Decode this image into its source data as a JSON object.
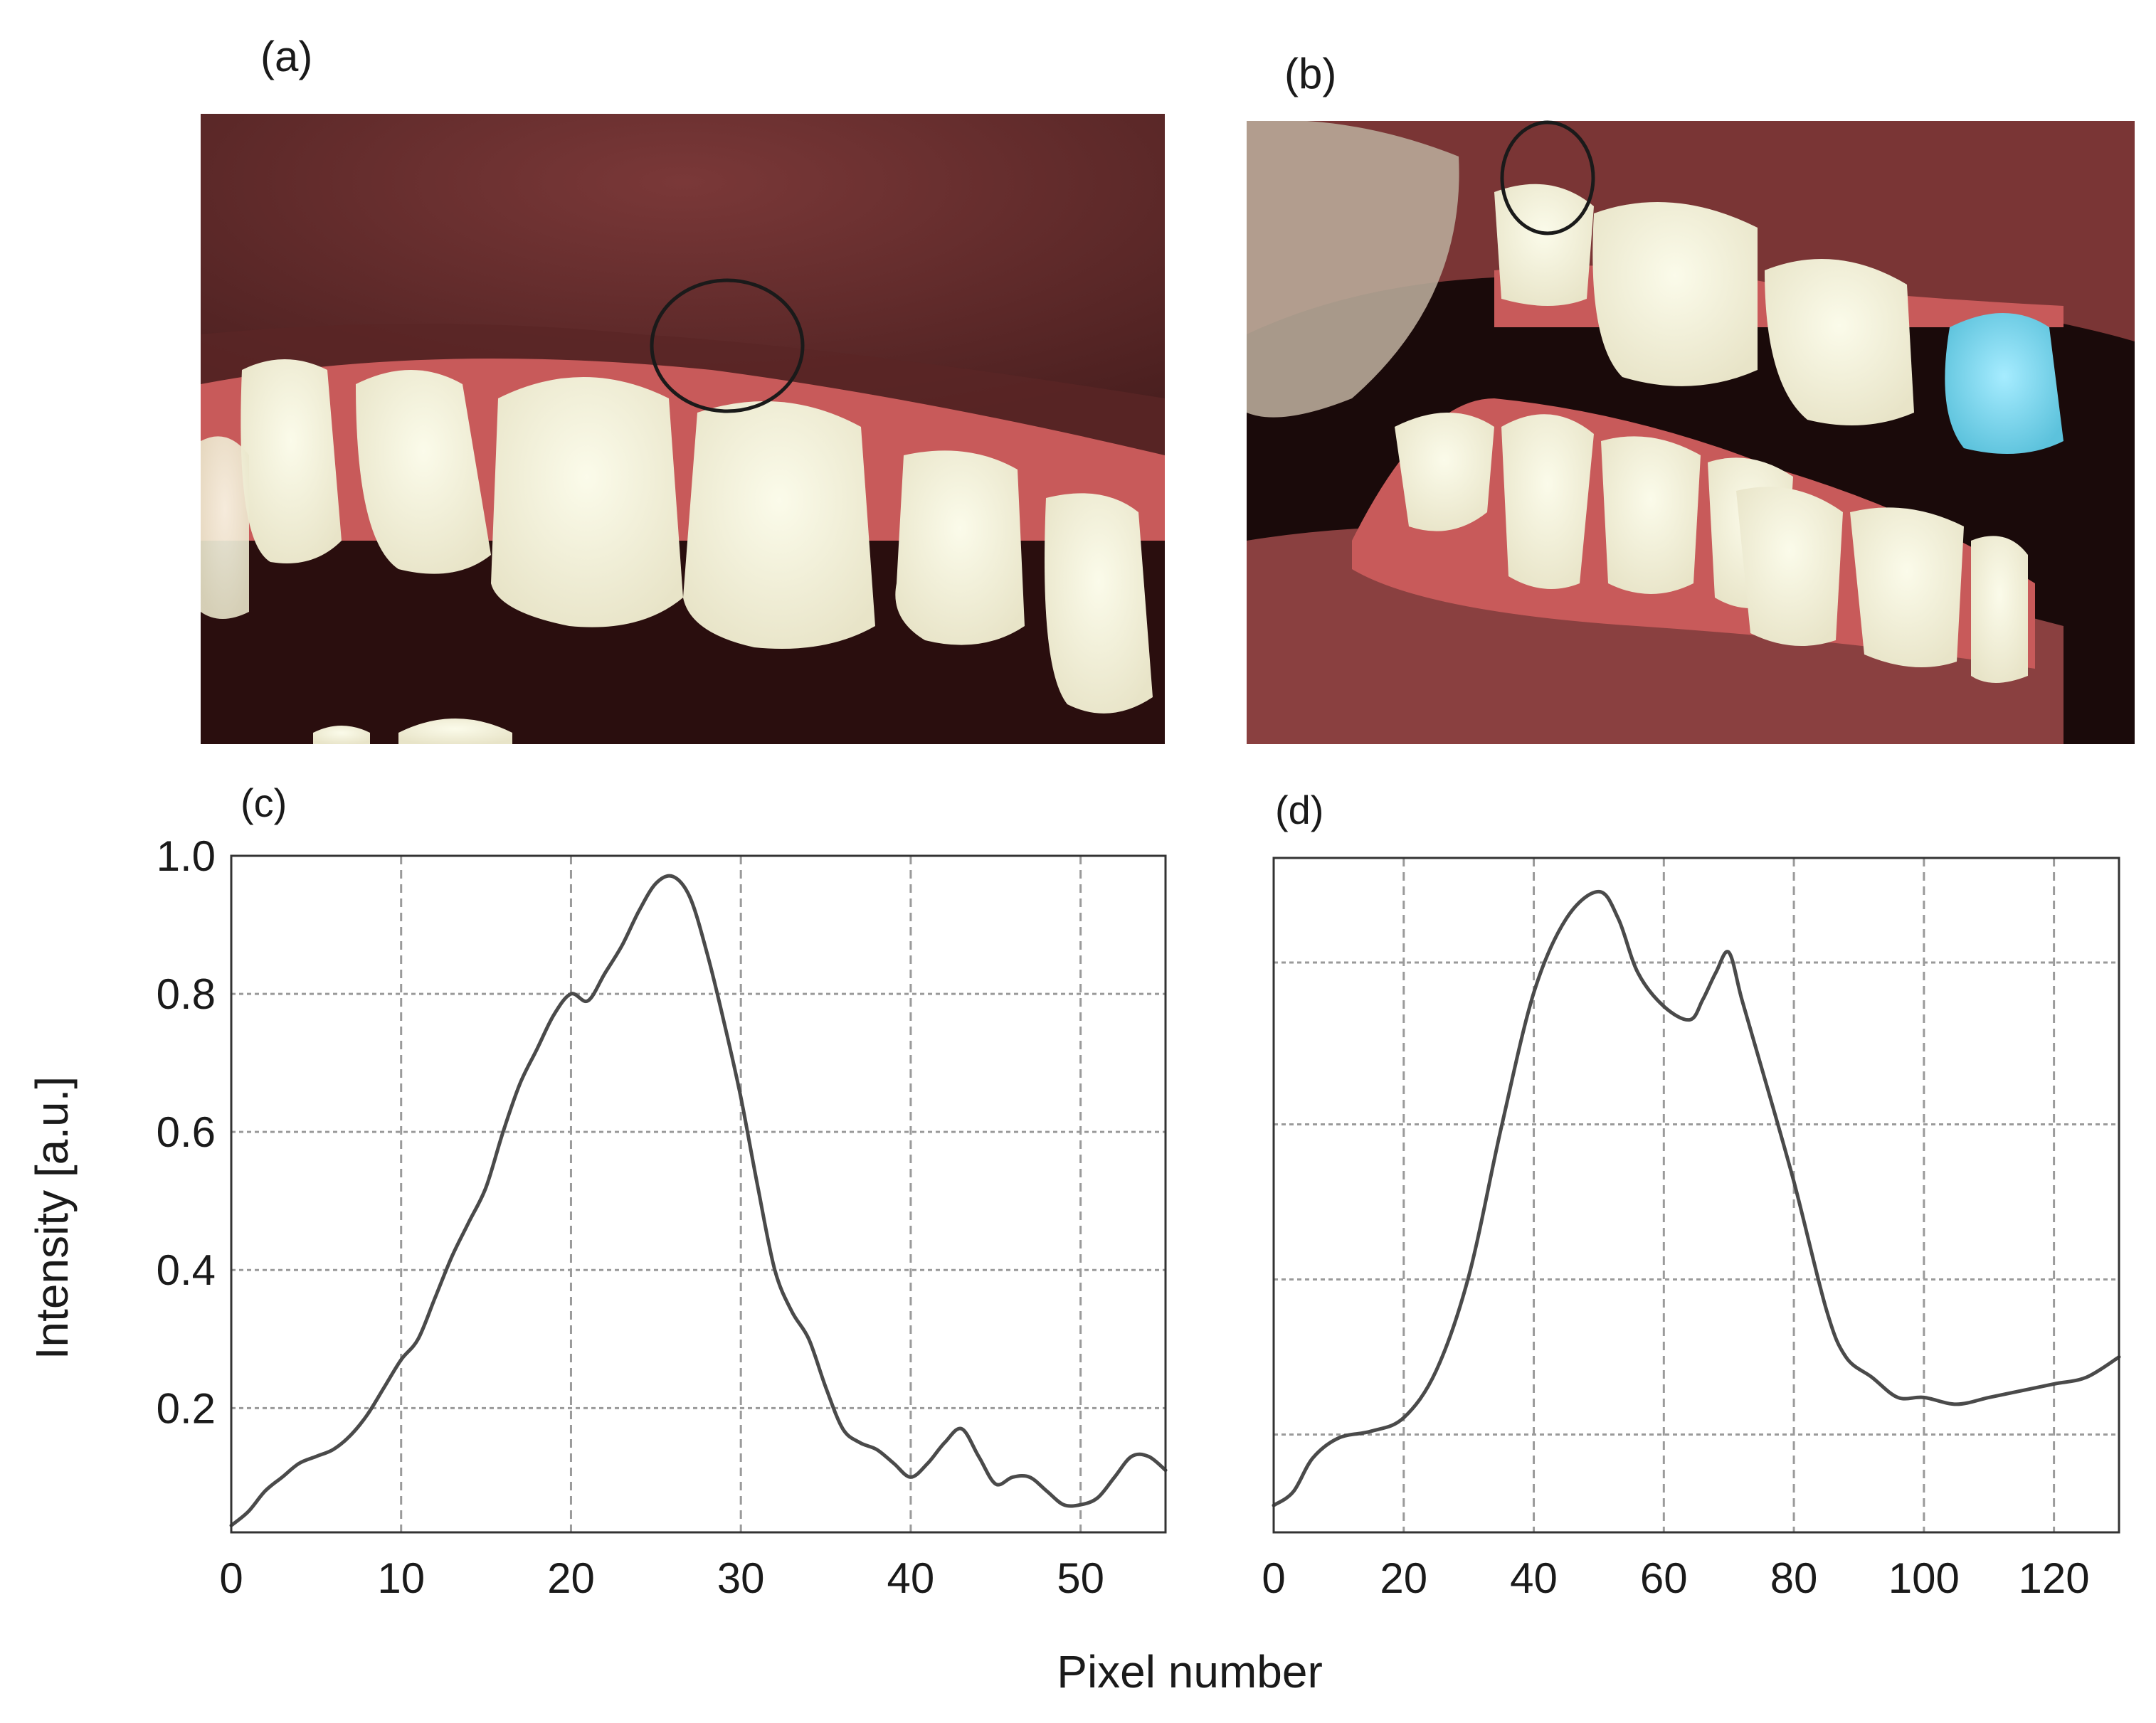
{
  "panel_labels": {
    "a": "(a)",
    "b": "(b)",
    "c": "(c)",
    "d": "(d)"
  },
  "shared_xlabel": "Pixel number",
  "shared_ylabel": "Intensity [a.u.]",
  "photos": {
    "a": {
      "gum": "#6b2f2f",
      "tooth": "#f2f0d8",
      "gap": "#c85a5a",
      "shadow": "#2a0e0e"
    },
    "b": {
      "gum": "#7a3535",
      "tooth": "#f4ecd6",
      "crown": "#86d8ee",
      "shadow": "#1a0a0a"
    }
  },
  "line_color": "#4a4a4a",
  "grid_color": "#9a9a9a",
  "chart_data": [
    {
      "type": "line",
      "panel": "c",
      "xlim": [
        0,
        55
      ],
      "ylim": [
        0.02,
        1.0
      ],
      "xticks": [
        0,
        10,
        20,
        30,
        40,
        50
      ],
      "yticks": [
        0.2,
        0.4,
        0.6,
        0.8,
        1.0
      ],
      "ytick_labels": [
        "0.2",
        "0.4",
        "0.6",
        "0.8",
        "1.0"
      ],
      "grid": true,
      "series": [
        {
          "x": [
            0,
            1,
            2,
            3,
            4,
            5,
            6,
            7,
            8,
            9,
            10,
            11,
            12,
            13,
            14,
            15,
            16,
            17,
            18,
            19,
            20,
            21,
            22,
            23,
            24,
            25,
            26,
            27,
            28,
            29,
            30,
            31,
            32,
            33,
            34,
            35,
            36,
            37,
            38,
            39,
            40,
            41,
            42,
            43,
            44,
            45,
            46,
            47,
            48,
            49,
            50,
            51,
            52,
            53,
            54,
            55
          ],
          "y": [
            0.03,
            0.05,
            0.08,
            0.1,
            0.12,
            0.13,
            0.14,
            0.16,
            0.19,
            0.23,
            0.27,
            0.3,
            0.36,
            0.42,
            0.47,
            0.52,
            0.6,
            0.67,
            0.72,
            0.77,
            0.8,
            0.79,
            0.83,
            0.87,
            0.92,
            0.96,
            0.97,
            0.94,
            0.86,
            0.76,
            0.65,
            0.52,
            0.4,
            0.34,
            0.3,
            0.23,
            0.17,
            0.15,
            0.14,
            0.12,
            0.1,
            0.12,
            0.15,
            0.17,
            0.13,
            0.09,
            0.1,
            0.1,
            0.08,
            0.06,
            0.06,
            0.07,
            0.1,
            0.13,
            0.13,
            0.11
          ]
        }
      ]
    },
    {
      "type": "line",
      "panel": "d",
      "xlim": [
        0,
        130
      ],
      "ylim": [
        0.0,
        1.0
      ],
      "xticks": [
        0,
        20,
        40,
        60,
        80,
        100,
        120
      ],
      "yticks": [
        0.145,
        0.375,
        0.605,
        0.845
      ],
      "ytick_labels": [],
      "grid": true,
      "series": [
        {
          "x": [
            0,
            3,
            6,
            10,
            15,
            20,
            25,
            30,
            35,
            40,
            45,
            50,
            53,
            56,
            60,
            64,
            66,
            68,
            70,
            72,
            75,
            80,
            85,
            88,
            92,
            96,
            100,
            105,
            110,
            115,
            120,
            125,
            130
          ],
          "y": [
            0.04,
            0.06,
            0.11,
            0.14,
            0.15,
            0.17,
            0.24,
            0.38,
            0.6,
            0.8,
            0.91,
            0.95,
            0.91,
            0.83,
            0.78,
            0.76,
            0.79,
            0.83,
            0.86,
            0.79,
            0.69,
            0.52,
            0.33,
            0.26,
            0.23,
            0.2,
            0.2,
            0.19,
            0.2,
            0.21,
            0.22,
            0.23,
            0.26
          ]
        }
      ]
    }
  ]
}
